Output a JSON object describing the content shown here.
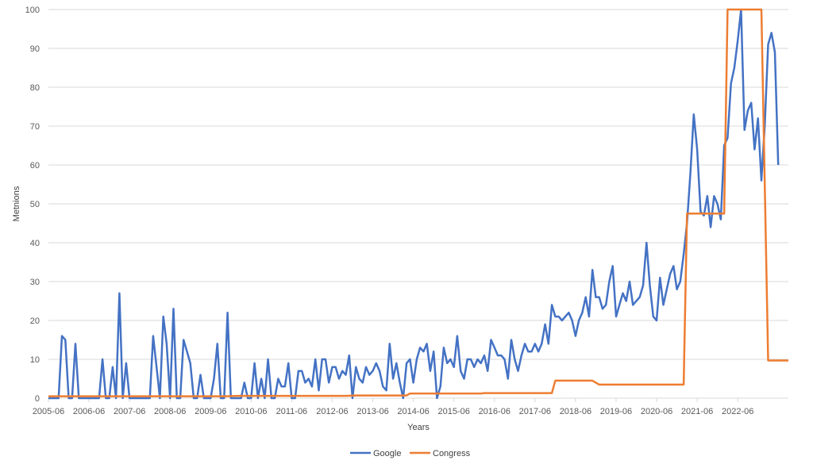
{
  "chart_data": {
    "type": "line",
    "xlabel": "Years",
    "ylabel": "Metnions",
    "ylim": [
      0,
      100
    ],
    "yticks": [
      0,
      10,
      20,
      30,
      40,
      50,
      60,
      70,
      80,
      90,
      100
    ],
    "x_start": "2005-06",
    "x_end": "2023-09",
    "xticks": [
      "2005-06",
      "2006-06",
      "2007-06",
      "2008-06",
      "2009-06",
      "2010-06",
      "2011-06",
      "2012-06",
      "2013-06",
      "2014-06",
      "2015-06",
      "2016-06",
      "2017-06",
      "2018-06",
      "2019-06",
      "2020-06",
      "2021-06",
      "2022-06"
    ],
    "grid": "horizontal",
    "legend_position": "bottom",
    "series": [
      {
        "name": "Google",
        "color": "#4472C4",
        "points": [
          [
            "2005-06",
            0
          ],
          [
            "2005-09",
            0
          ],
          [
            "2005-10",
            16
          ],
          [
            "2005-11",
            15
          ],
          [
            "2005-12",
            0
          ],
          [
            "2006-01",
            0
          ],
          [
            "2006-02",
            14
          ],
          [
            "2006-03",
            0
          ],
          [
            "2006-06",
            0
          ],
          [
            "2006-09",
            0
          ],
          [
            "2006-10",
            10
          ],
          [
            "2006-11",
            0
          ],
          [
            "2006-12",
            0
          ],
          [
            "2007-01",
            8
          ],
          [
            "2007-02",
            0
          ],
          [
            "2007-03",
            27
          ],
          [
            "2007-04",
            0
          ],
          [
            "2007-05",
            9
          ],
          [
            "2007-06",
            0
          ],
          [
            "2007-12",
            0
          ],
          [
            "2008-01",
            16
          ],
          [
            "2008-02",
            8
          ],
          [
            "2008-03",
            0
          ],
          [
            "2008-04",
            21
          ],
          [
            "2008-05",
            14
          ],
          [
            "2008-06",
            0
          ],
          [
            "2008-07",
            23
          ],
          [
            "2008-08",
            0
          ],
          [
            "2008-09",
            0
          ],
          [
            "2008-10",
            15
          ],
          [
            "2008-11",
            12
          ],
          [
            "2008-12",
            9
          ],
          [
            "2009-01",
            0
          ],
          [
            "2009-02",
            0
          ],
          [
            "2009-03",
            6
          ],
          [
            "2009-04",
            0
          ],
          [
            "2009-05",
            0
          ],
          [
            "2009-06",
            0
          ],
          [
            "2009-07",
            5
          ],
          [
            "2009-08",
            14
          ],
          [
            "2009-09",
            0
          ],
          [
            "2009-10",
            0
          ],
          [
            "2009-11",
            22
          ],
          [
            "2009-12",
            0
          ],
          [
            "2010-01",
            0
          ],
          [
            "2010-02",
            0
          ],
          [
            "2010-03",
            0
          ],
          [
            "2010-04",
            4
          ],
          [
            "2010-05",
            0
          ],
          [
            "2010-06",
            0
          ],
          [
            "2010-07",
            9
          ],
          [
            "2010-08",
            0
          ],
          [
            "2010-09",
            5
          ],
          [
            "2010-10",
            0
          ],
          [
            "2010-11",
            10
          ],
          [
            "2010-12",
            0
          ],
          [
            "2011-01",
            0
          ],
          [
            "2011-02",
            5
          ],
          [
            "2011-03",
            3
          ],
          [
            "2011-04",
            3
          ],
          [
            "2011-05",
            9
          ],
          [
            "2011-06",
            0
          ],
          [
            "2011-07",
            0
          ],
          [
            "2011-08",
            7
          ],
          [
            "2011-09",
            7
          ],
          [
            "2011-10",
            4
          ],
          [
            "2011-11",
            5
          ],
          [
            "2011-12",
            3
          ],
          [
            "2012-01",
            10
          ],
          [
            "2012-02",
            2
          ],
          [
            "2012-03",
            10
          ],
          [
            "2012-04",
            10
          ],
          [
            "2012-05",
            4
          ],
          [
            "2012-06",
            8
          ],
          [
            "2012-07",
            8
          ],
          [
            "2012-08",
            5
          ],
          [
            "2012-09",
            7
          ],
          [
            "2012-10",
            6
          ],
          [
            "2012-11",
            11
          ],
          [
            "2012-12",
            0
          ],
          [
            "2013-01",
            8
          ],
          [
            "2013-02",
            5
          ],
          [
            "2013-03",
            4
          ],
          [
            "2013-04",
            8
          ],
          [
            "2013-05",
            6
          ],
          [
            "2013-06",
            7
          ],
          [
            "2013-07",
            9
          ],
          [
            "2013-08",
            7
          ],
          [
            "2013-09",
            3
          ],
          [
            "2013-10",
            2
          ],
          [
            "2013-11",
            14
          ],
          [
            "2013-12",
            5
          ],
          [
            "2014-01",
            9
          ],
          [
            "2014-02",
            4
          ],
          [
            "2014-03",
            0
          ],
          [
            "2014-04",
            9
          ],
          [
            "2014-05",
            10
          ],
          [
            "2014-06",
            4
          ],
          [
            "2014-07",
            10
          ],
          [
            "2014-08",
            13
          ],
          [
            "2014-09",
            12
          ],
          [
            "2014-10",
            14
          ],
          [
            "2014-11",
            7
          ],
          [
            "2014-12",
            12
          ],
          [
            "2015-01",
            0
          ],
          [
            "2015-02",
            3
          ],
          [
            "2015-03",
            13
          ],
          [
            "2015-04",
            9
          ],
          [
            "2015-05",
            10
          ],
          [
            "2015-06",
            8
          ],
          [
            "2015-07",
            16
          ],
          [
            "2015-08",
            7
          ],
          [
            "2015-09",
            5
          ],
          [
            "2015-10",
            10
          ],
          [
            "2015-11",
            10
          ],
          [
            "2015-12",
            8
          ],
          [
            "2016-01",
            10
          ],
          [
            "2016-02",
            9
          ],
          [
            "2016-03",
            11
          ],
          [
            "2016-04",
            7
          ],
          [
            "2016-05",
            15
          ],
          [
            "2016-06",
            13
          ],
          [
            "2016-07",
            11
          ],
          [
            "2016-08",
            11
          ],
          [
            "2016-09",
            10
          ],
          [
            "2016-10",
            5
          ],
          [
            "2016-11",
            15
          ],
          [
            "2016-12",
            10
          ],
          [
            "2017-01",
            7
          ],
          [
            "2017-02",
            11
          ],
          [
            "2017-03",
            14
          ],
          [
            "2017-04",
            12
          ],
          [
            "2017-05",
            12
          ],
          [
            "2017-06",
            14
          ],
          [
            "2017-07",
            12
          ],
          [
            "2017-08",
            14
          ],
          [
            "2017-09",
            19
          ],
          [
            "2017-10",
            14
          ],
          [
            "2017-11",
            24
          ],
          [
            "2017-12",
            21
          ],
          [
            "2018-01",
            21
          ],
          [
            "2018-02",
            20
          ],
          [
            "2018-03",
            21
          ],
          [
            "2018-04",
            22
          ],
          [
            "2018-05",
            20
          ],
          [
            "2018-06",
            16
          ],
          [
            "2018-07",
            20
          ],
          [
            "2018-08",
            22
          ],
          [
            "2018-09",
            26
          ],
          [
            "2018-10",
            21
          ],
          [
            "2018-11",
            33
          ],
          [
            "2018-12",
            26
          ],
          [
            "2019-01",
            26
          ],
          [
            "2019-02",
            23
          ],
          [
            "2019-03",
            24
          ],
          [
            "2019-04",
            30
          ],
          [
            "2019-05",
            34
          ],
          [
            "2019-06",
            21
          ],
          [
            "2019-07",
            24
          ],
          [
            "2019-08",
            27
          ],
          [
            "2019-09",
            25
          ],
          [
            "2019-10",
            30
          ],
          [
            "2019-11",
            24
          ],
          [
            "2019-12",
            25
          ],
          [
            "2020-01",
            26
          ],
          [
            "2020-02",
            29
          ],
          [
            "2020-03",
            40
          ],
          [
            "2020-04",
            29
          ],
          [
            "2020-05",
            21
          ],
          [
            "2020-06",
            20
          ],
          [
            "2020-07",
            31
          ],
          [
            "2020-08",
            24
          ],
          [
            "2020-09",
            28
          ],
          [
            "2020-10",
            32
          ],
          [
            "2020-11",
            34
          ],
          [
            "2020-12",
            28
          ],
          [
            "2021-01",
            30
          ],
          [
            "2021-02",
            37
          ],
          [
            "2021-03",
            45
          ],
          [
            "2021-04",
            58
          ],
          [
            "2021-05",
            73
          ],
          [
            "2021-06",
            64
          ],
          [
            "2021-07",
            48
          ],
          [
            "2021-08",
            47
          ],
          [
            "2021-09",
            52
          ],
          [
            "2021-10",
            44
          ],
          [
            "2021-11",
            52
          ],
          [
            "2021-12",
            50
          ],
          [
            "2022-01",
            46
          ],
          [
            "2022-02",
            65
          ],
          [
            "2022-03",
            67
          ],
          [
            "2022-04",
            81
          ],
          [
            "2022-05",
            85
          ],
          [
            "2022-06",
            92
          ],
          [
            "2022-07",
            100
          ],
          [
            "2022-08",
            69
          ],
          [
            "2022-09",
            74
          ],
          [
            "2022-10",
            76
          ],
          [
            "2022-11",
            64
          ],
          [
            "2022-12",
            72
          ],
          [
            "2023-01",
            56
          ],
          [
            "2023-02",
            70
          ],
          [
            "2023-03",
            91
          ],
          [
            "2023-04",
            94
          ],
          [
            "2023-05",
            89
          ],
          [
            "2023-06",
            60
          ]
        ]
      },
      {
        "name": "Congress",
        "color": "#ED7D31",
        "points": [
          [
            "2005-06",
            0.5
          ],
          [
            "2009-10",
            0.5
          ],
          [
            "2010-02",
            0.6
          ],
          [
            "2012-10",
            0.6
          ],
          [
            "2013-01",
            0.7
          ],
          [
            "2014-04",
            0.7
          ],
          [
            "2014-05",
            1.2
          ],
          [
            "2016-02",
            1.2
          ],
          [
            "2016-03",
            1.3
          ],
          [
            "2017-11",
            1.3
          ],
          [
            "2017-12",
            4.5
          ],
          [
            "2018-11",
            4.5
          ],
          [
            "2019-01",
            3.5
          ],
          [
            "2021-02",
            3.5
          ],
          [
            "2021-03",
            47.5
          ],
          [
            "2022-02",
            47.5
          ],
          [
            "2022-03",
            100
          ],
          [
            "2023-01",
            100
          ],
          [
            "2023-03",
            9.7
          ],
          [
            "2023-09",
            9.7
          ]
        ]
      }
    ]
  }
}
